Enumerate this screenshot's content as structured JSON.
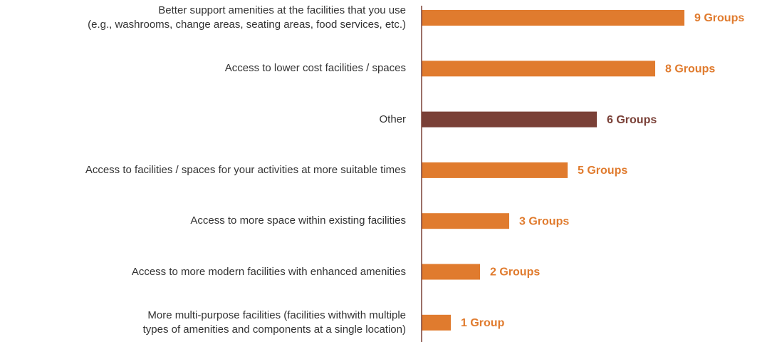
{
  "chart_data": {
    "type": "bar",
    "orientation": "horizontal",
    "categories": [
      "Better support amenities at the facilities that you use\n(e.g., washrooms, change areas, seating areas, food services, etc.)",
      "Access to lower cost facilities / spaces",
      "Other",
      "Access to facilities / spaces for your activities at more suitable times",
      "Access to more space within existing facilities",
      "Access to more modern facilities with enhanced amenities",
      "More multi-purpose facilities (facilities withwith multiple\ntypes of amenities and components at a single location)"
    ],
    "values": [
      9,
      8,
      6,
      5,
      3,
      2,
      1
    ],
    "value_labels": [
      "9 Groups",
      "8 Groups",
      "6 Groups",
      "5 Groups",
      "3 Groups",
      "2 Groups",
      "1 Group"
    ],
    "colors": [
      "#e07b2e",
      "#e07b2e",
      "#7a4037",
      "#e07b2e",
      "#e07b2e",
      "#e07b2e",
      "#e07b2e"
    ],
    "axis_color": "#7a4037"
  }
}
